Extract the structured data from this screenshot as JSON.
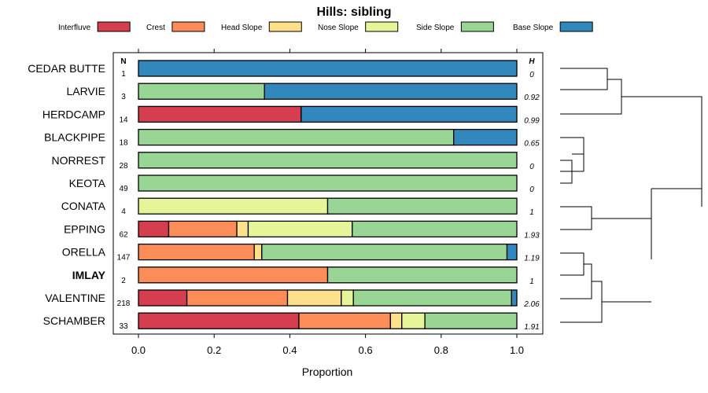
{
  "chart_data": {
    "type": "bar",
    "subtype": "stacked-horizontal-proportion",
    "title": "Hills: sibling",
    "xlabel": "Proportion",
    "xlim": [
      0,
      1
    ],
    "x_ticks": [
      "0.0",
      "0.2",
      "0.4",
      "0.6",
      "0.8",
      "1.0"
    ],
    "x_tick_values": [
      0,
      0.2,
      0.4,
      0.6,
      0.8,
      1.0
    ],
    "n_header": "N",
    "h_header": "H",
    "legend_position": "top",
    "series": [
      {
        "name": "Interfluve",
        "color": "#d53e4f"
      },
      {
        "name": "Crest",
        "color": "#fc8d59"
      },
      {
        "name": "Head Slope",
        "color": "#fee08b"
      },
      {
        "name": "Nose Slope",
        "color": "#e6f598"
      },
      {
        "name": "Side Slope",
        "color": "#99d594"
      },
      {
        "name": "Base Slope",
        "color": "#3288bd"
      }
    ],
    "rows": [
      {
        "name": "CEDAR BUTTE",
        "n": "1",
        "h": "0",
        "bold": false,
        "values": [
          0,
          0,
          0,
          0,
          0,
          1.0
        ]
      },
      {
        "name": "LARVIE",
        "n": "3",
        "h": "0.92",
        "bold": false,
        "values": [
          0,
          0,
          0,
          0,
          0.333,
          0.667
        ]
      },
      {
        "name": "HERDCAMP",
        "n": "14",
        "h": "0.99",
        "bold": false,
        "values": [
          0.43,
          0,
          0,
          0,
          0,
          0.57
        ]
      },
      {
        "name": "BLACKPIPE",
        "n": "18",
        "h": "0.65",
        "bold": false,
        "values": [
          0,
          0,
          0,
          0,
          0.833,
          0.167
        ]
      },
      {
        "name": "NORREST",
        "n": "28",
        "h": "0",
        "bold": false,
        "values": [
          0,
          0,
          0,
          0,
          1.0,
          0
        ]
      },
      {
        "name": "KEOTA",
        "n": "49",
        "h": "0",
        "bold": false,
        "values": [
          0,
          0,
          0,
          0,
          1.0,
          0
        ]
      },
      {
        "name": "CONATA",
        "n": "4",
        "h": "1",
        "bold": false,
        "values": [
          0,
          0,
          0,
          0.5,
          0.5,
          0
        ]
      },
      {
        "name": "EPPING",
        "n": "62",
        "h": "1.93",
        "bold": false,
        "values": [
          0.08,
          0.18,
          0.03,
          0.275,
          0.435,
          0
        ]
      },
      {
        "name": "ORELLA",
        "n": "147",
        "h": "1.19",
        "bold": false,
        "values": [
          0,
          0.306,
          0.02,
          0,
          0.648,
          0.026
        ]
      },
      {
        "name": "IMLAY",
        "n": "2",
        "h": "1",
        "bold": true,
        "values": [
          0,
          0.5,
          0,
          0,
          0.5,
          0
        ]
      },
      {
        "name": "VALENTINE",
        "n": "218",
        "h": "2.06",
        "bold": false,
        "values": [
          0.128,
          0.266,
          0.142,
          0.032,
          0.418,
          0.014
        ]
      },
      {
        "name": "SCHAMBER",
        "n": "33",
        "h": "1.91",
        "bold": false,
        "values": [
          0.424,
          0.242,
          0.03,
          0.061,
          0.243,
          0
        ]
      }
    ],
    "dendrogram": "hierarchical clustering of rows, drawn to the right"
  }
}
